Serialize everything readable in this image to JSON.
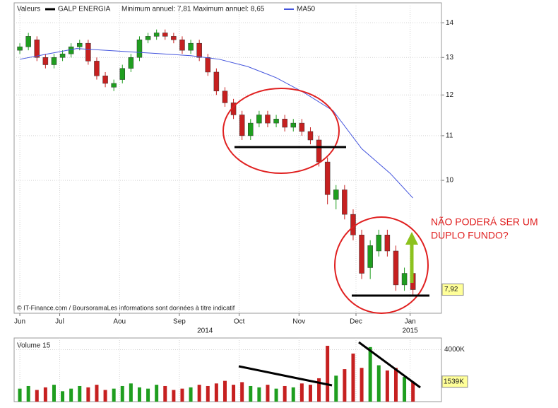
{
  "chart_data": [
    {
      "type": "candlestick",
      "header": "Valeurs",
      "name": "GALP ENERGIA",
      "stats": "Minimum annuel: 7,81 Maximum annuel: 8,65",
      "footer": "© IT-Finance.com / BoursoramaLes informations sont données à titre indicatif",
      "annotation": [
        "NÃO PODERÁ SER UM",
        "DUPLO FUNDO?"
      ],
      "x": [
        0,
        3,
        6,
        9,
        12,
        15,
        18,
        21,
        24,
        27,
        30,
        33,
        36,
        39,
        42,
        45,
        48,
        51,
        54,
        57,
        60,
        63,
        66,
        69,
        72,
        75,
        78,
        81,
        84,
        87,
        90,
        93,
        96,
        99,
        102,
        105,
        108,
        111,
        114,
        117,
        120,
        123,
        126,
        129,
        132,
        135,
        138
      ],
      "open": [
        13.2,
        13.3,
        13.5,
        13.0,
        12.8,
        13.0,
        13.1,
        13.3,
        13.4,
        12.9,
        12.5,
        12.2,
        12.4,
        12.7,
        13.0,
        13.5,
        13.6,
        13.7,
        13.6,
        13.5,
        13.2,
        13.4,
        13.0,
        12.6,
        12.1,
        11.8,
        11.5,
        11.0,
        11.3,
        11.5,
        11.3,
        11.4,
        11.2,
        11.3,
        11.1,
        10.9,
        10.4,
        9.6,
        9.8,
        9.3,
        8.9,
        8.3,
        8.6,
        8.9,
        8.6,
        8.0,
        8.2
      ],
      "high": [
        13.4,
        13.7,
        13.6,
        13.1,
        13.1,
        13.2,
        13.4,
        13.5,
        13.5,
        13.0,
        12.6,
        12.4,
        12.8,
        13.1,
        13.6,
        13.7,
        13.8,
        13.8,
        13.7,
        13.6,
        13.5,
        13.5,
        13.1,
        12.7,
        12.2,
        11.9,
        11.6,
        11.4,
        11.6,
        11.6,
        11.5,
        11.5,
        11.4,
        11.4,
        11.2,
        11.0,
        10.5,
        9.9,
        9.9,
        9.4,
        9.0,
        8.8,
        9.0,
        9.0,
        8.7,
        8.3,
        8.3
      ],
      "low": [
        13.1,
        13.2,
        12.9,
        12.7,
        12.7,
        12.9,
        13.0,
        13.2,
        12.8,
        12.4,
        12.2,
        12.1,
        12.3,
        12.6,
        12.9,
        13.4,
        13.5,
        13.5,
        13.4,
        13.1,
        13.1,
        12.9,
        12.5,
        12.0,
        11.7,
        11.4,
        10.9,
        10.9,
        11.2,
        11.2,
        11.2,
        11.1,
        11.1,
        11.0,
        10.8,
        10.3,
        9.5,
        9.4,
        9.2,
        8.8,
        8.1,
        8.1,
        8.5,
        8.5,
        7.9,
        7.9,
        7.81
      ],
      "close": [
        13.3,
        13.6,
        13.0,
        12.8,
        13.0,
        13.1,
        13.3,
        13.4,
        12.9,
        12.5,
        12.3,
        12.3,
        12.7,
        13.0,
        13.5,
        13.6,
        13.7,
        13.6,
        13.5,
        13.2,
        13.4,
        13.0,
        12.6,
        12.1,
        11.8,
        11.5,
        11.0,
        11.3,
        11.5,
        11.3,
        11.4,
        11.2,
        11.3,
        11.1,
        10.9,
        10.4,
        9.7,
        9.8,
        9.3,
        8.9,
        8.2,
        8.7,
        8.9,
        8.6,
        8.0,
        8.2,
        7.92
      ],
      "up_color": "#1f9e1f",
      "down_color": "#c62020",
      "ma": {
        "name": "MA50",
        "color": "#4455dd",
        "x": [
          0,
          10,
          20,
          30,
          40,
          50,
          60,
          70,
          80,
          90,
          100,
          110,
          120,
          130,
          138
        ],
        "values": [
          12.95,
          13.1,
          13.25,
          13.2,
          13.15,
          13.1,
          13.05,
          12.95,
          12.75,
          12.45,
          12.05,
          11.6,
          10.7,
          10.15,
          9.63
        ]
      },
      "last_price": {
        "value": 7.92,
        "label": "7,92"
      },
      "xlim": [
        -2,
        148
      ],
      "xticks": [
        {
          "value": 0,
          "label": "Jun"
        },
        {
          "value": 14,
          "label": "Jul"
        },
        {
          "value": 35,
          "label": "Aou"
        },
        {
          "value": 56,
          "label": "Sep"
        },
        {
          "value": 77,
          "label": "Oct"
        },
        {
          "value": 98,
          "label": "Nov"
        },
        {
          "value": 118,
          "label": "Dec"
        },
        {
          "value": 137,
          "label": "Jan"
        }
      ],
      "year_labels": [
        {
          "value": 65,
          "label": "2014"
        },
        {
          "value": 137,
          "label": "2015"
        }
      ],
      "ylim": [
        7.53,
        14.52
      ],
      "yticks": [
        10,
        11,
        12,
        13,
        14
      ],
      "log_scale": true,
      "grid": true
    },
    {
      "type": "bar",
      "title": "Volume 15",
      "values": [
        1000,
        1200,
        900,
        1100,
        1300,
        800,
        1000,
        1200,
        1100,
        1300,
        900,
        1000,
        1200,
        1400,
        1100,
        1000,
        1300,
        1200,
        900,
        1000,
        1100,
        1300,
        1200,
        1400,
        1600,
        1300,
        1500,
        1200,
        1100,
        1300,
        1000,
        1200,
        1100,
        1400,
        1300,
        1800,
        4300,
        2000,
        2500,
        3700,
        2600,
        4200,
        2800,
        2400,
        2600,
        1900,
        1539
      ],
      "last_label": {
        "value": 1539,
        "label": "1539K"
      },
      "ylim": [
        0,
        4900
      ],
      "yticks": [
        {
          "value": 4000,
          "label": "4000K"
        }
      ]
    }
  ]
}
